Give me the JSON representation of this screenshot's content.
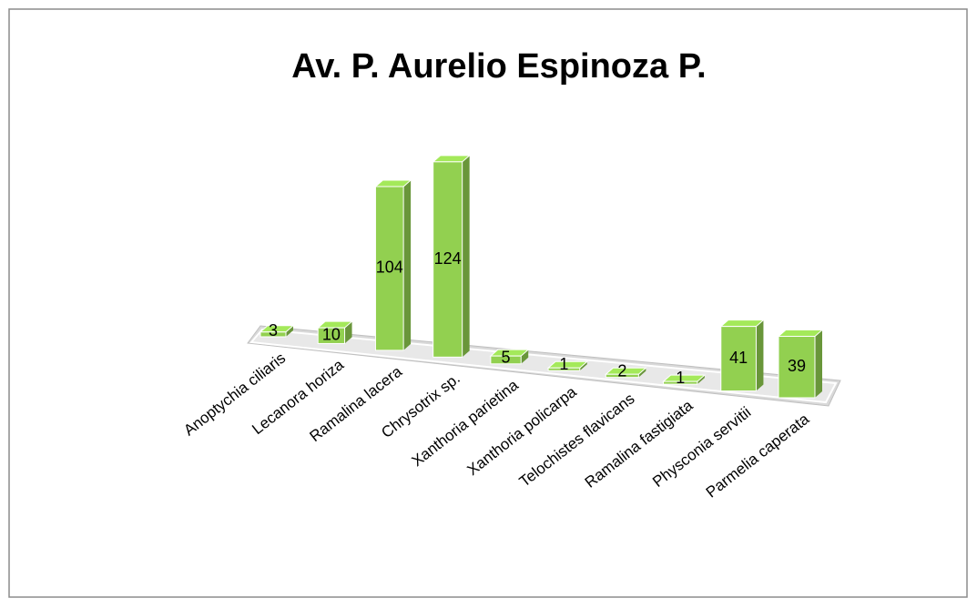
{
  "chart_data": {
    "type": "bar3d",
    "title": "Av. P. Aurelio Espinoza P.",
    "categories": [
      "Anoptychia ciliaris",
      "Lecanora horiza",
      "Ramalina lacera",
      "Chrysotrix sp.",
      "Xanthoria parietina",
      "Xanthoria policarpa",
      "Telochistes flavicans",
      "Ramalina fastigiata",
      "Physconia servitii",
      "Parmelia caperata"
    ],
    "values": [
      3,
      10,
      104,
      124,
      5,
      1,
      2,
      1,
      41,
      39
    ],
    "color": "#92d050"
  }
}
